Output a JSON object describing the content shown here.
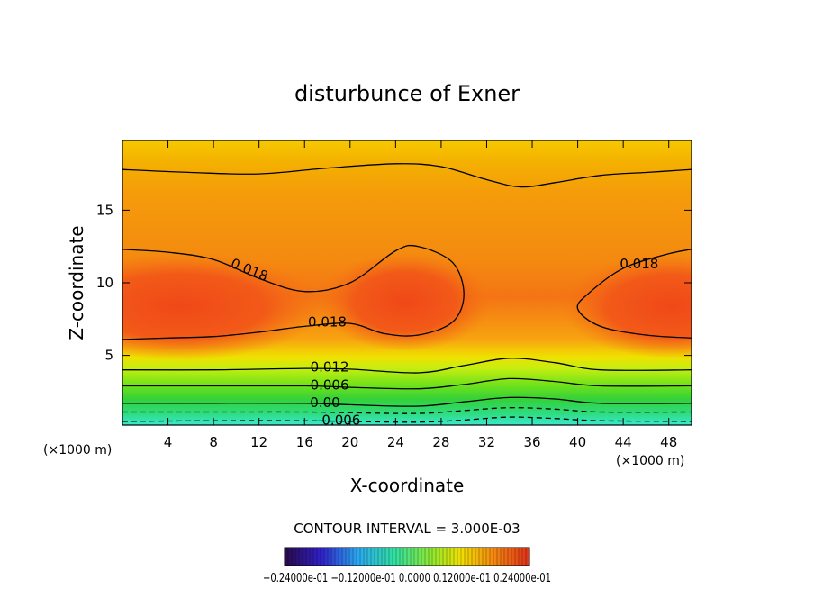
{
  "chart_data": {
    "type": "heatmap",
    "subtype": "filled-contour",
    "title": "disturbunce of Exner",
    "xlabel": "X-coordinate",
    "ylabel": "Z-coordinate",
    "x_unit": "(×1000 m)",
    "y_unit": "(×1000 m)",
    "xlim": [
      0,
      50
    ],
    "ylim": [
      0.2,
      19.8
    ],
    "x_ticks": [
      4,
      8,
      12,
      16,
      20,
      24,
      28,
      32,
      36,
      40,
      44,
      48
    ],
    "y_ticks": [
      5,
      10,
      15
    ],
    "contour_interval_label": "CONTOUR INTERVAL = 3.000E-03",
    "contour_lines": [
      {
        "label": "0.018",
        "points": [
          [
            0,
            12.3
          ],
          [
            4,
            12.1
          ],
          [
            8,
            11.6
          ],
          [
            12,
            10.3
          ],
          [
            16,
            9.4
          ],
          [
            20,
            10
          ],
          [
            24,
            12.2
          ],
          [
            26,
            12.5
          ],
          [
            29,
            11.4
          ],
          [
            30,
            9.2
          ],
          [
            29,
            7.3
          ],
          [
            26,
            6.4
          ],
          [
            23,
            6.5
          ],
          [
            20,
            7.2
          ],
          [
            16,
            7.0
          ],
          [
            12,
            6.6
          ],
          [
            8,
            6.3
          ],
          [
            4,
            6.2
          ],
          [
            0,
            6.1
          ]
        ]
      },
      {
        "label": "0.018",
        "points": [
          [
            50,
            12.3
          ],
          [
            48,
            12.0
          ],
          [
            44,
            11.0
          ],
          [
            41,
            9.3
          ],
          [
            40,
            8.2
          ],
          [
            42,
            7.0
          ],
          [
            46,
            6.4
          ],
          [
            50,
            6.2
          ]
        ]
      },
      {
        "label": "",
        "points": [
          [
            0,
            17.8
          ],
          [
            6,
            17.6
          ],
          [
            12,
            17.5
          ],
          [
            18,
            17.9
          ],
          [
            24,
            18.2
          ],
          [
            28,
            18.0
          ],
          [
            32,
            17.1
          ],
          [
            35,
            16.6
          ],
          [
            38,
            16.9
          ],
          [
            42,
            17.4
          ],
          [
            46,
            17.6
          ],
          [
            50,
            17.8
          ]
        ]
      },
      {
        "label": "0.012",
        "points": [
          [
            0,
            4.0
          ],
          [
            8,
            4.0
          ],
          [
            16,
            4.1
          ],
          [
            20,
            4.05
          ],
          [
            26,
            3.8
          ],
          [
            30,
            4.3
          ],
          [
            34,
            4.8
          ],
          [
            38,
            4.5
          ],
          [
            42,
            4.0
          ],
          [
            50,
            4.0
          ]
        ]
      },
      {
        "label": "0.006",
        "points": [
          [
            0,
            2.9
          ],
          [
            8,
            2.9
          ],
          [
            16,
            2.9
          ],
          [
            20,
            2.8
          ],
          [
            26,
            2.7
          ],
          [
            30,
            3.0
          ],
          [
            34,
            3.4
          ],
          [
            38,
            3.2
          ],
          [
            42,
            2.9
          ],
          [
            50,
            2.9
          ]
        ]
      },
      {
        "label": "0.00",
        "points": [
          [
            0,
            1.7
          ],
          [
            8,
            1.7
          ],
          [
            16,
            1.7
          ],
          [
            20,
            1.6
          ],
          [
            26,
            1.5
          ],
          [
            30,
            1.8
          ],
          [
            34,
            2.1
          ],
          [
            38,
            2.0
          ],
          [
            42,
            1.7
          ],
          [
            50,
            1.7
          ]
        ]
      },
      {
        "label": "",
        "dashed": true,
        "points": [
          [
            0,
            1.1
          ],
          [
            8,
            1.1
          ],
          [
            16,
            1.1
          ],
          [
            20,
            1.05
          ],
          [
            26,
            1.0
          ],
          [
            30,
            1.2
          ],
          [
            34,
            1.4
          ],
          [
            38,
            1.3
          ],
          [
            42,
            1.1
          ],
          [
            50,
            1.1
          ]
        ]
      },
      {
        "label": "-0.006",
        "dashed": true,
        "points": [
          [
            0,
            0.45
          ],
          [
            8,
            0.5
          ],
          [
            16,
            0.5
          ],
          [
            20,
            0.45
          ],
          [
            26,
            0.4
          ],
          [
            30,
            0.55
          ],
          [
            34,
            0.75
          ],
          [
            38,
            0.65
          ],
          [
            42,
            0.5
          ],
          [
            50,
            0.45
          ]
        ]
      }
    ],
    "colorbar": {
      "min": -0.024,
      "max": 0.024,
      "tick_labels_text": "−0.24000e-01   −0.12000e-01   0.0000   0.12000e-01   0.24000e-01"
    }
  },
  "colors": {
    "background": "#ffffff",
    "field_top": "#f4b000",
    "field_mid": "#f7980c",
    "field_core": "#f2501a",
    "field_low_green": "#36d63a",
    "field_bottom_cyan": "#35e3c8"
  }
}
